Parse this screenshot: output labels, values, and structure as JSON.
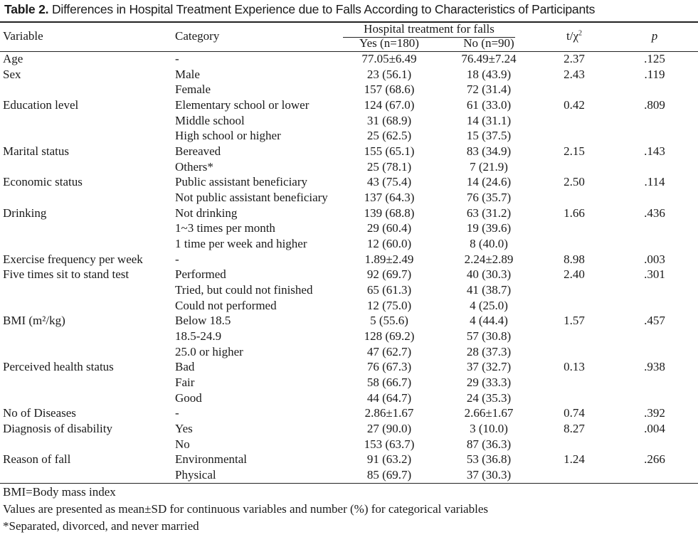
{
  "title": {
    "label": "Table 2.",
    "text": "Differences in Hospital Treatment Experience due to Falls According to Characteristics of Participants"
  },
  "headers": {
    "variable": "Variable",
    "category": "Category",
    "group": "Hospital treatment for falls",
    "yes": "Yes (n=180)",
    "no": "No (n=90)",
    "stat_base": "t/χ",
    "stat_sup": "2",
    "p": "p"
  },
  "rows": [
    {
      "variable": "Age",
      "category": "-",
      "yes": "77.05±6.49",
      "no": "76.49±7.24",
      "stat": "2.37",
      "p": ".125"
    },
    {
      "variable": "Sex",
      "category": "Male",
      "yes": "23 (56.1)",
      "no": "18 (43.9)",
      "stat": "2.43",
      "p": ".119"
    },
    {
      "variable": "",
      "category": "Female",
      "yes": "157 (68.6)",
      "no": "72 (31.4)",
      "stat": "",
      "p": ""
    },
    {
      "variable": "Education level",
      "category": "Elementary school or lower",
      "yes": "124 (67.0)",
      "no": "61 (33.0)",
      "stat": "0.42",
      "p": ".809"
    },
    {
      "variable": "",
      "category": "Middle school",
      "yes": "31 (68.9)",
      "no": "14 (31.1)",
      "stat": "",
      "p": ""
    },
    {
      "variable": "",
      "category": "High school or higher",
      "yes": "25 (62.5)",
      "no": "15 (37.5)",
      "stat": "",
      "p": ""
    },
    {
      "variable": "Marital status",
      "category": "Bereaved",
      "yes": "155 (65.1)",
      "no": "83 (34.9)",
      "stat": "2.15",
      "p": ".143"
    },
    {
      "variable": "",
      "category": "Others*",
      "yes": "25 (78.1)",
      "no": "7 (21.9)",
      "stat": "",
      "p": ""
    },
    {
      "variable": "Economic status",
      "category": "Public assistant beneficiary",
      "yes": "43 (75.4)",
      "no": "14 (24.6)",
      "stat": "2.50",
      "p": ".114"
    },
    {
      "variable": "",
      "category": "Not public assistant beneficiary",
      "yes": "137 (64.3)",
      "no": "76 (35.7)",
      "stat": "",
      "p": ""
    },
    {
      "variable": "Drinking",
      "category": "Not drinking",
      "yes": "139 (68.8)",
      "no": "63 (31.2)",
      "stat": "1.66",
      "p": ".436"
    },
    {
      "variable": "",
      "category": "1~3 times per month",
      "yes": "29 (60.4)",
      "no": "19 (39.6)",
      "stat": "",
      "p": ""
    },
    {
      "variable": "",
      "category": "1 time per week and higher",
      "yes": "12 (60.0)",
      "no": "8 (40.0)",
      "stat": "",
      "p": ""
    },
    {
      "variable": "Exercise frequency per week",
      "category": "-",
      "yes": "1.89±2.49",
      "no": "2.24±2.89",
      "stat": "8.98",
      "p": ".003"
    },
    {
      "variable": "Five times sit to stand test",
      "category": "Performed",
      "yes": "92 (69.7)",
      "no": "40 (30.3)",
      "stat": "2.40",
      "p": ".301"
    },
    {
      "variable": "",
      "category": "Tried, but could not finished",
      "yes": "65 (61.3)",
      "no": "41 (38.7)",
      "stat": "",
      "p": ""
    },
    {
      "variable": "",
      "category": "Could not performed",
      "yes": "12 (75.0)",
      "no": "4 (25.0)",
      "stat": "",
      "p": ""
    },
    {
      "variable": "BMI (m²/kg)",
      "category": "Below 18.5",
      "yes": "5 (55.6)",
      "no": "4 (44.4)",
      "stat": "1.57",
      "p": ".457"
    },
    {
      "variable": "",
      "category": "18.5-24.9",
      "yes": "128 (69.2)",
      "no": "57 (30.8)",
      "stat": "",
      "p": ""
    },
    {
      "variable": "",
      "category": "25.0 or higher",
      "yes": "47 (62.7)",
      "no": "28 (37.3)",
      "stat": "",
      "p": ""
    },
    {
      "variable": "Perceived health status",
      "category": "Bad",
      "yes": "76 (67.3)",
      "no": "37 (32.7)",
      "stat": "0.13",
      "p": ".938"
    },
    {
      "variable": "",
      "category": "Fair",
      "yes": "58 (66.7)",
      "no": "29 (33.3)",
      "stat": "",
      "p": ""
    },
    {
      "variable": "",
      "category": "Good",
      "yes": "44 (64.7)",
      "no": "24 (35.3)",
      "stat": "",
      "p": ""
    },
    {
      "variable": "No of Diseases",
      "category": "-",
      "yes": "2.86±1.67",
      "no": "2.66±1.67",
      "stat": "0.74",
      "p": ".392"
    },
    {
      "variable": "Diagnosis of disability",
      "category": "Yes",
      "yes": "27 (90.0)",
      "no": "3 (10.0)",
      "stat": "8.27",
      "p": ".004"
    },
    {
      "variable": "",
      "category": "No",
      "yes": "153 (63.7)",
      "no": "87 (36.3)",
      "stat": "",
      "p": ""
    },
    {
      "variable": "Reason of fall",
      "category": "Environmental",
      "yes": "91 (63.2)",
      "no": "53 (36.8)",
      "stat": "1.24",
      "p": ".266"
    },
    {
      "variable": "",
      "category": "Physical",
      "yes": "85 (69.7)",
      "no": "37 (30.3)",
      "stat": "",
      "p": ""
    }
  ],
  "footnotes": [
    "BMI=Body mass index",
    "Values are presented as mean±SD for continuous variables and number (%) for categorical variables",
    "*Separated, divorced, and never married"
  ]
}
